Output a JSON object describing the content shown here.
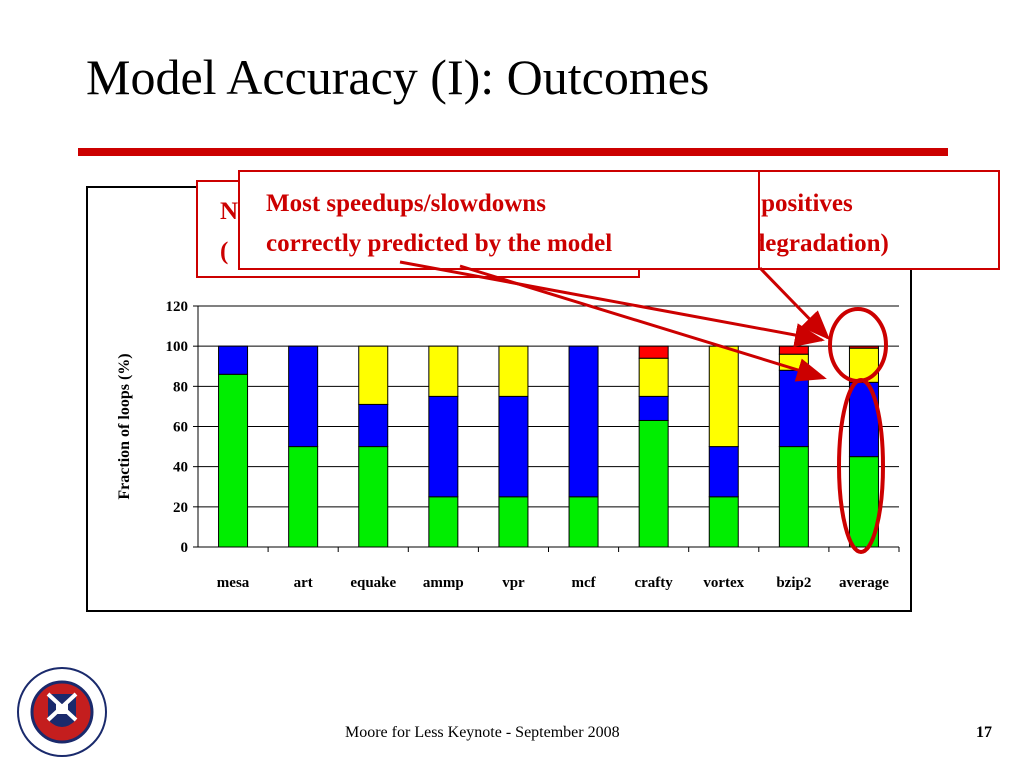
{
  "slide": {
    "title": "Model Accuracy (I): Outcomes",
    "footer": "Moore for Less Keynote - September 2008",
    "page_number": "17",
    "logo_text": "THE UNIVERSITY OF EDINBURGH"
  },
  "callouts": {
    "back_left": {
      "line1": "N",
      "line2": "("
    },
    "back_right": {
      "line1": "se positives",
      "line2": "e degradation)"
    },
    "front": {
      "line1": "Most speedups/slowdowns",
      "line2": "correctly predicted by the model"
    }
  },
  "colors": {
    "accent": "#cc0000",
    "green": "#00ee00",
    "blue": "#0000ff",
    "yellow": "#ffff00",
    "red": "#ff0000",
    "grid": "#000000"
  },
  "chart_data": {
    "type": "bar",
    "stacked": true,
    "categories": [
      "mesa",
      "art",
      "equake",
      "ammp",
      "vpr",
      "mcf",
      "crafty",
      "vortex",
      "bzip2",
      "average"
    ],
    "series": [
      {
        "color": "green",
        "values": [
          86,
          50,
          50,
          25,
          25,
          25,
          63,
          25,
          50,
          45
        ]
      },
      {
        "color": "blue",
        "values": [
          14,
          50,
          21,
          50,
          50,
          75,
          12,
          25,
          38,
          37
        ]
      },
      {
        "color": "yellow",
        "values": [
          0,
          0,
          29,
          25,
          25,
          0,
          19,
          50,
          8,
          17
        ]
      },
      {
        "color": "red",
        "values": [
          0,
          0,
          0,
          0,
          0,
          0,
          6,
          0,
          4,
          1
        ]
      }
    ],
    "ylabel": "Fraction of loops (%)",
    "xlabel": "",
    "ylim": [
      0,
      120
    ],
    "yticks": [
      0,
      20,
      40,
      60,
      80,
      100,
      120
    ],
    "grid": true,
    "legend": "none"
  }
}
